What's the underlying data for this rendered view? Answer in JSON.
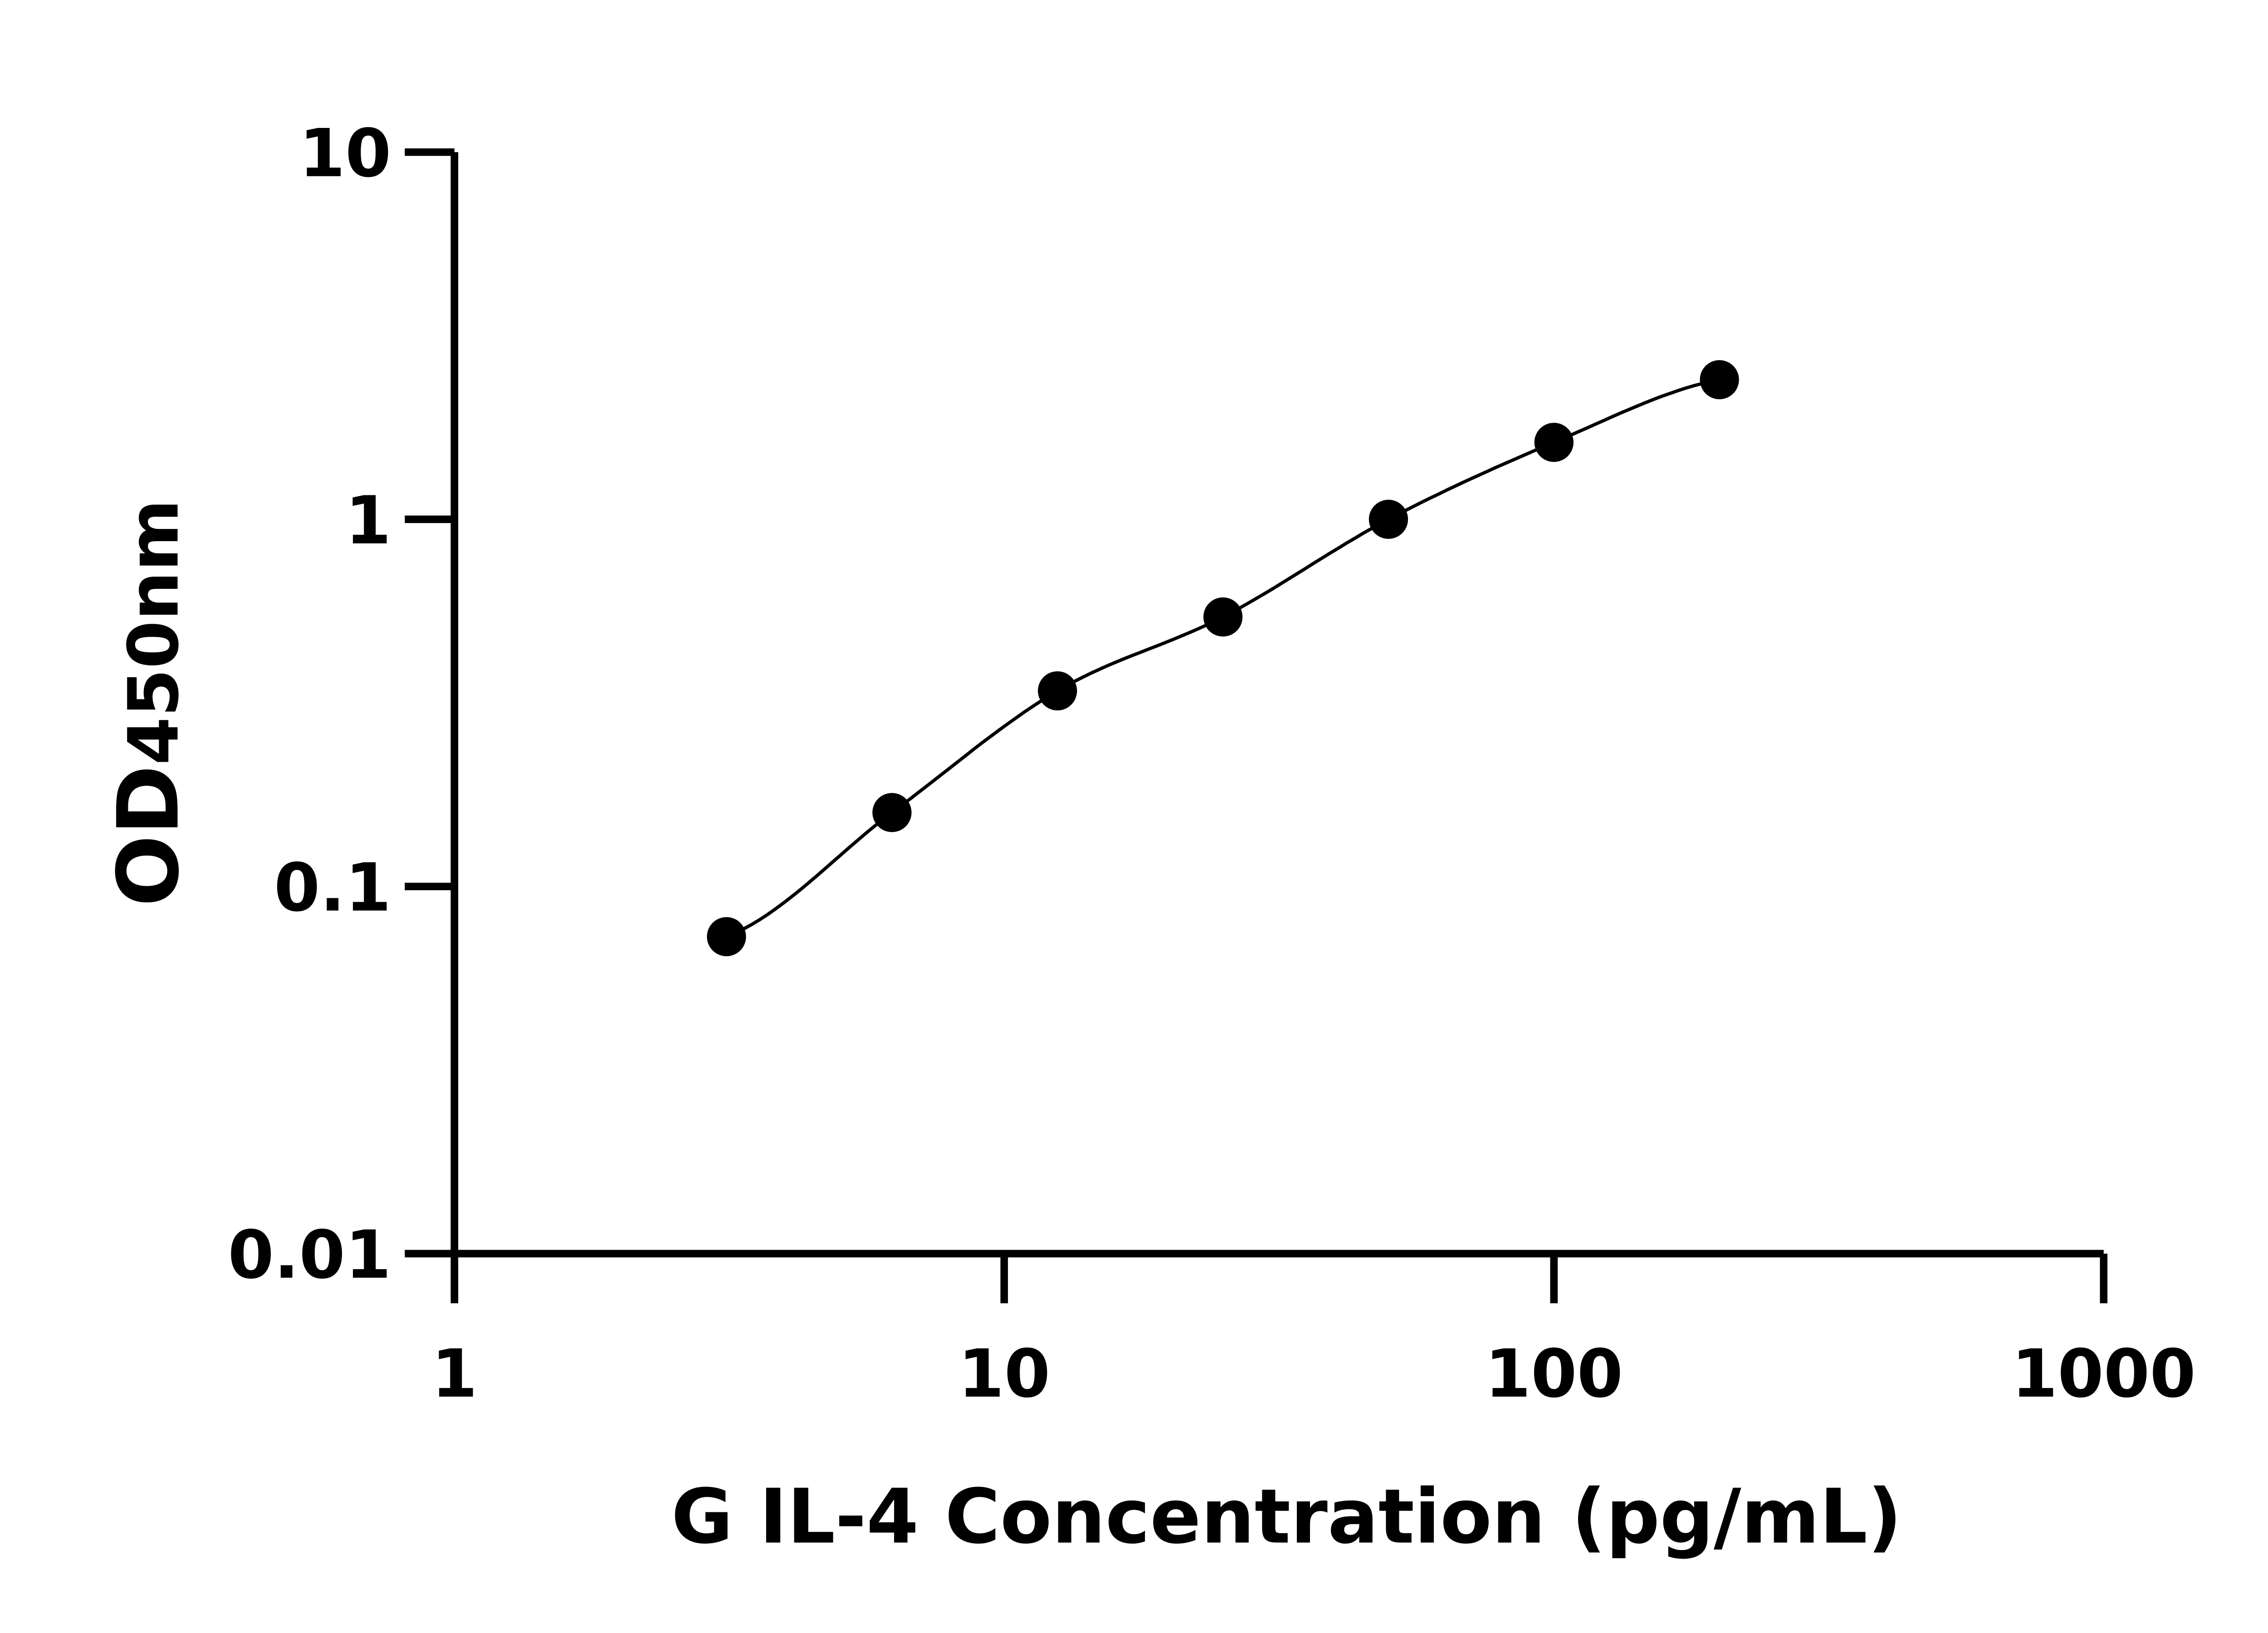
{
  "chart_data": {
    "type": "scatter",
    "title": "",
    "xlabel": "G IL-4 Concentration (pg/mL)",
    "ylabel_main": "OD",
    "ylabel_sub": "450nm",
    "x_scale": "log",
    "y_scale": "log",
    "xlim": [
      1,
      1000
    ],
    "ylim": [
      0.01,
      10
    ],
    "x_ticks": [
      "1",
      "10",
      "100",
      "1000"
    ],
    "y_ticks": [
      "0.01",
      "0.1",
      "1",
      "10"
    ],
    "grid": false,
    "fit_line": true,
    "x": [
      3.125,
      6.25,
      12.5,
      25,
      50,
      100,
      200
    ],
    "y": [
      0.073,
      0.159,
      0.341,
      0.542,
      1.0,
      1.62,
      2.4
    ],
    "colors": {
      "points": "#000000",
      "line": "#000000",
      "axes": "#000000"
    }
  }
}
